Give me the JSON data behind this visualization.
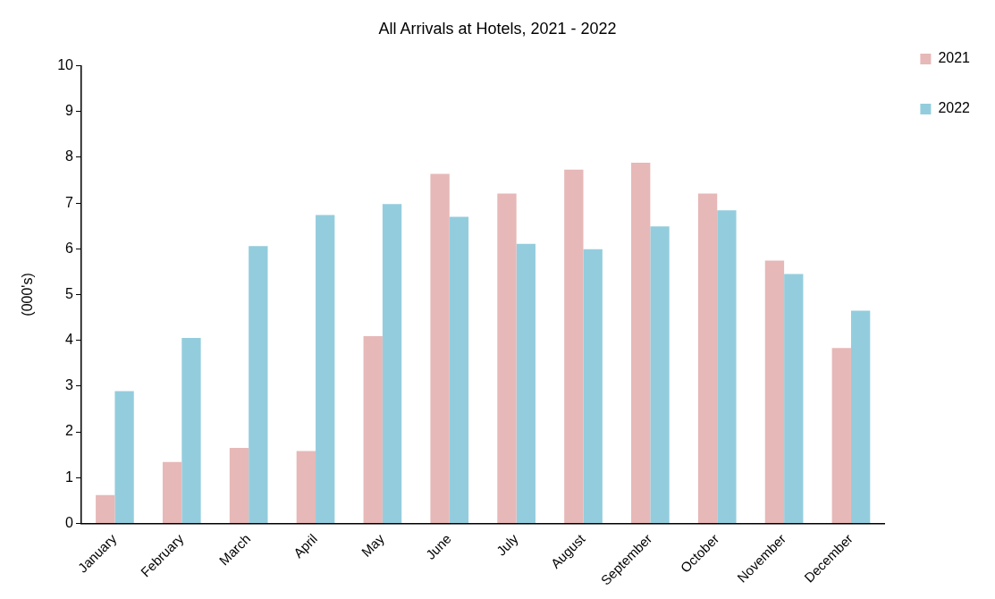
{
  "chart_data": {
    "type": "bar",
    "title": "All Arrivals at Hotels, 2021 - 2022",
    "ylabel": "(000's)",
    "categories": [
      "January",
      "February",
      "March",
      "April",
      "May",
      "June",
      "July",
      "August",
      "September",
      "October",
      "November",
      "December"
    ],
    "series": [
      {
        "name": "2021",
        "color": "#e6b8b7",
        "values": [
          0.62,
          1.34,
          1.65,
          1.58,
          4.09,
          7.64,
          7.21,
          7.73,
          7.88,
          7.21,
          5.74,
          3.83
        ]
      },
      {
        "name": "2022",
        "color": "#93cddd",
        "values": [
          2.89,
          4.05,
          6.06,
          6.74,
          6.98,
          6.7,
          6.11,
          5.99,
          6.49,
          6.84,
          5.45,
          4.65
        ]
      }
    ],
    "ylim": [
      0,
      10
    ],
    "yticks": [
      0,
      1,
      2,
      3,
      4,
      5,
      6,
      7,
      8,
      9,
      10
    ],
    "grid": false,
    "legend": "top right"
  }
}
